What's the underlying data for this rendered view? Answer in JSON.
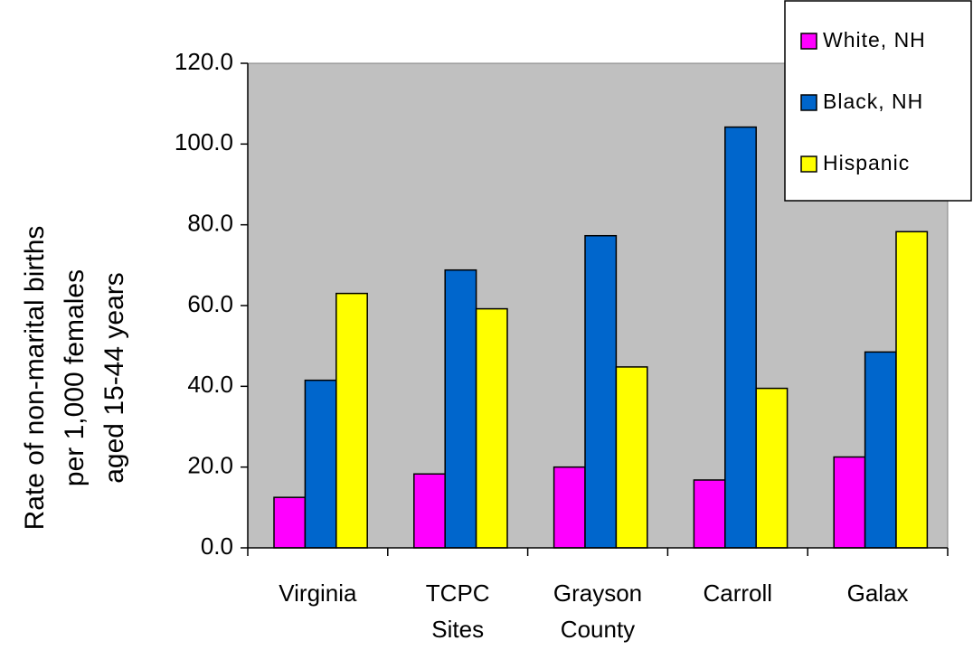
{
  "chart_data": {
    "type": "bar",
    "y_label": [
      "Rate of non-marital births",
      "per 1,000 females",
      "aged 15-44 years"
    ],
    "categories": [
      [
        "Virginia"
      ],
      [
        "TCPC",
        "Sites"
      ],
      [
        "Grayson",
        "County"
      ],
      [
        "Carroll"
      ],
      [
        "Galax"
      ]
    ],
    "series": [
      {
        "name": "White, NH",
        "color": "#ff00ff",
        "values": [
          12.5,
          18.3,
          20.0,
          16.8,
          22.5
        ]
      },
      {
        "name": "Black, NH",
        "color": "#0066cc",
        "values": [
          41.5,
          68.8,
          77.3,
          104.2,
          48.5
        ]
      },
      {
        "name": "Hispanic",
        "color": "#ffff00",
        "values": [
          63.0,
          59.2,
          44.8,
          39.5,
          78.3
        ]
      }
    ],
    "ylim": [
      0,
      120
    ],
    "yticks": [
      {
        "value": 0,
        "label": "0.0"
      },
      {
        "value": 20,
        "label": "20.0"
      },
      {
        "value": 40,
        "label": "40.0"
      },
      {
        "value": 60,
        "label": "60.0"
      },
      {
        "value": 80,
        "label": "80.0"
      },
      {
        "value": 100,
        "label": "100.0"
      },
      {
        "value": 120,
        "label": "120.0"
      }
    ],
    "legend": "top-right",
    "plot_background": "#c0c0c0"
  }
}
